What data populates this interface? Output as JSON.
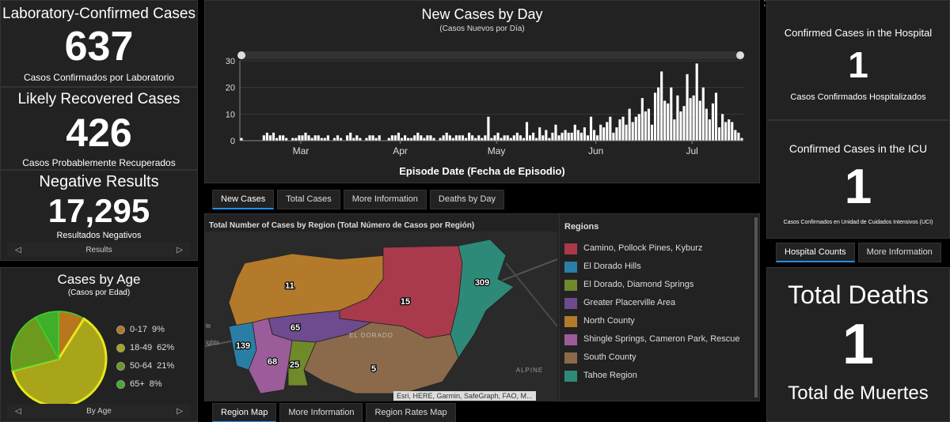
{
  "lab": {
    "title": "Laboratory-Confirmed Cases",
    "value": "637",
    "subtitle": "Casos Confirmados por Laboratorio"
  },
  "recovered": {
    "title": "Likely Recovered Cases",
    "value": "426",
    "subtitle": "Casos Probablemente Recuperados"
  },
  "negative": {
    "title": "Negative Results",
    "value": "17,295",
    "subtitle": "Resultados Negativos"
  },
  "results_nav": {
    "label": "Results"
  },
  "age": {
    "title": "Cases by Age",
    "subtitle": "(Casos por Edad)",
    "nav_label": "By Age",
    "items": [
      {
        "label": "0-17",
        "pct": "9%",
        "value": 9,
        "color": "#b8761e"
      },
      {
        "label": "18-49",
        "pct": "62%",
        "value": 62,
        "color": "#a8a51a"
      },
      {
        "label": "50-64",
        "pct": "21%",
        "value": 21,
        "color": "#6b9a1f"
      },
      {
        "label": "65+",
        "pct": "8%",
        "value": 8,
        "color": "#3fae2a"
      }
    ]
  },
  "chart_data": {
    "type": "bar",
    "title": "New Cases by Day",
    "subtitle": "(Casos Nuevos por Día)",
    "xlabel": "Episode Date (Fecha de Episodio)",
    "ylabel": "",
    "ylim": [
      0,
      30
    ],
    "yticks": [
      0,
      10,
      20,
      30
    ],
    "months": [
      {
        "label": "Mar",
        "day": 19
      },
      {
        "label": "Apr",
        "day": 50
      },
      {
        "label": "May",
        "day": 80
      },
      {
        "label": "Jun",
        "day": 111
      },
      {
        "label": "Jul",
        "day": 141
      }
    ],
    "values": [
      1,
      0,
      0,
      0,
      0,
      0,
      0,
      2,
      3,
      2,
      3,
      1,
      2,
      2,
      1,
      0,
      1,
      1,
      2,
      2,
      3,
      2,
      1,
      2,
      2,
      1,
      1,
      2,
      0,
      1,
      2,
      1,
      0,
      2,
      3,
      1,
      2,
      1,
      0,
      1,
      2,
      2,
      1,
      2,
      0,
      0,
      1,
      2,
      2,
      3,
      1,
      2,
      1,
      1,
      2,
      3,
      2,
      1,
      2,
      2,
      1,
      0,
      1,
      2,
      3,
      2,
      1,
      2,
      2,
      2,
      1,
      3,
      2,
      1,
      2,
      1,
      2,
      9,
      1,
      2,
      3,
      1,
      2,
      2,
      1,
      2,
      3,
      2,
      1,
      7,
      2,
      3,
      1,
      5,
      2,
      4,
      1,
      3,
      6,
      2,
      3,
      4,
      3,
      3,
      6,
      4,
      3,
      5,
      2,
      9,
      4,
      2,
      6,
      5,
      7,
      9,
      3,
      5,
      8,
      9,
      6,
      12,
      7,
      9,
      10,
      16,
      11,
      12,
      6,
      18,
      20,
      26,
      15,
      14,
      20,
      8,
      17,
      11,
      13,
      25,
      16,
      17,
      29,
      15,
      20,
      12,
      8,
      14,
      18,
      5,
      10,
      7,
      8,
      7,
      4,
      3,
      1
    ]
  },
  "chart_tabs": [
    "New Cases",
    "Total Cases",
    "More Information",
    "Deaths by Day"
  ],
  "map": {
    "title": "Total Number of Cases by Region (Total Número de Casos por Región)",
    "labels": [
      "11",
      "15",
      "309",
      "65",
      "139",
      "68",
      "25",
      "5"
    ],
    "place_labels": {
      "eldorado": "EL DORADO",
      "alpine": "ALPINE",
      "le": "le",
      "ights": "ights"
    },
    "attribution": "Esri, HERE, Garmin, SafeGraph, FAO, M...",
    "legend_title": "Regions",
    "regions": [
      {
        "label": "Camino, Pollock Pines, Kyburz",
        "color": "#a83a4c"
      },
      {
        "label": "El Dorado Hills",
        "color": "#2a7ea6"
      },
      {
        "label": "El Dorado, Diamond Springs",
        "color": "#6f8a2a"
      },
      {
        "label": "Greater Placerville Area",
        "color": "#6e4a8e"
      },
      {
        "label": "North County",
        "color": "#b27a2a"
      },
      {
        "label": "Shingle Springs, Cameron Park, Rescue",
        "color": "#9c5c9a"
      },
      {
        "label": "South County",
        "color": "#8a6a4a"
      },
      {
        "label": "Tahoe Region",
        "color": "#2e8a78"
      }
    ]
  },
  "map_tabs": [
    "Region Map",
    "More Information",
    "Region Rates Map"
  ],
  "hospital": {
    "title": "Confirmed Cases in the Hospital",
    "value": "1",
    "subtitle": "Casos Confirmados Hospitalizados"
  },
  "icu": {
    "title": "Confirmed Cases in the ICU",
    "value": "1",
    "subtitle": "Casos Confirmados en Unidad de Cuidados Intensivos (UCI)"
  },
  "hospital_tabs": [
    "Hospital Counts",
    "More Information"
  ],
  "deaths": {
    "title": "Total Deaths",
    "value": "1",
    "subtitle": "Total de Muertes"
  },
  "colors": {
    "accent": "#1e90ff",
    "panel": "#222222",
    "bar": "#ffffff"
  }
}
